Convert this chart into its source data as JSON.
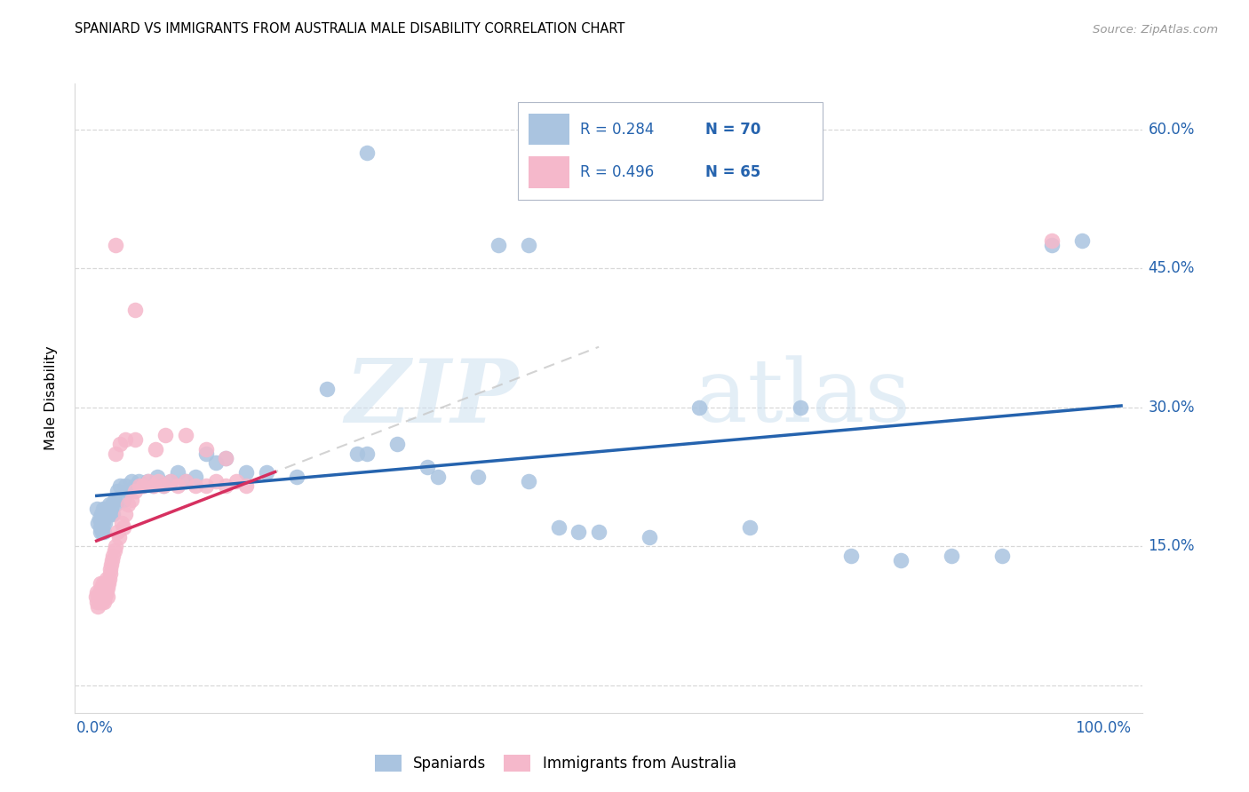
{
  "title": "SPANIARD VS IMMIGRANTS FROM AUSTRALIA MALE DISABILITY CORRELATION CHART",
  "source": "Source: ZipAtlas.com",
  "ylabel": "Male Disability",
  "legend_r1": "R = 0.284",
  "legend_n1": "N = 70",
  "legend_r2": "R = 0.496",
  "legend_n2": "N = 65",
  "spaniard_color": "#aac4e0",
  "immigrant_color": "#f5b8cb",
  "spaniard_line_color": "#2563ae",
  "immigrant_line_color": "#d63060",
  "immigrant_dash_color": "#c8c8c8",
  "legend_text_color": "#2563ae",
  "tick_color": "#2563ae",
  "grid_color": "#d8d8d8",
  "ylim": [
    -0.03,
    0.65
  ],
  "xlim": [
    -0.02,
    1.04
  ],
  "yticks": [
    0.0,
    0.15,
    0.3,
    0.45,
    0.6
  ],
  "ytick_labels": [
    "",
    "15.0%",
    "30.0%",
    "45.0%",
    "60.0%"
  ],
  "spaniard_x": [
    0.002,
    0.003,
    0.004,
    0.005,
    0.005,
    0.006,
    0.006,
    0.007,
    0.007,
    0.008,
    0.008,
    0.009,
    0.009,
    0.01,
    0.01,
    0.011,
    0.012,
    0.013,
    0.014,
    0.015,
    0.016,
    0.017,
    0.018,
    0.019,
    0.02,
    0.022,
    0.025,
    0.028,
    0.03,
    0.033,
    0.036,
    0.04,
    0.043,
    0.048,
    0.052,
    0.057,
    0.062,
    0.068,
    0.075,
    0.082,
    0.09,
    0.1,
    0.11,
    0.12,
    0.13,
    0.15,
    0.17,
    0.2,
    0.23,
    0.26,
    0.3,
    0.34,
    0.38,
    0.43,
    0.48,
    0.5,
    0.55,
    0.6,
    0.65,
    0.7,
    0.75,
    0.8,
    0.85,
    0.9,
    0.95,
    0.98,
    0.27,
    0.33,
    0.4,
    0.46
  ],
  "spaniard_y": [
    0.19,
    0.175,
    0.18,
    0.17,
    0.165,
    0.185,
    0.175,
    0.18,
    0.165,
    0.19,
    0.175,
    0.18,
    0.165,
    0.19,
    0.175,
    0.185,
    0.19,
    0.185,
    0.195,
    0.185,
    0.19,
    0.195,
    0.185,
    0.2,
    0.195,
    0.21,
    0.215,
    0.2,
    0.215,
    0.21,
    0.22,
    0.215,
    0.22,
    0.215,
    0.22,
    0.215,
    0.225,
    0.215,
    0.22,
    0.23,
    0.22,
    0.225,
    0.25,
    0.24,
    0.245,
    0.23,
    0.23,
    0.225,
    0.32,
    0.25,
    0.26,
    0.225,
    0.225,
    0.22,
    0.165,
    0.165,
    0.16,
    0.3,
    0.17,
    0.3,
    0.14,
    0.135,
    0.14,
    0.14,
    0.475,
    0.48,
    0.25,
    0.235,
    0.475,
    0.17
  ],
  "spaniard_outlier_x": [
    0.27
  ],
  "spaniard_outlier_y": [
    0.575
  ],
  "spaniard_outlier2_x": [
    0.43
  ],
  "spaniard_outlier2_y": [
    0.475
  ],
  "immigrant_x": [
    0.001,
    0.002,
    0.002,
    0.003,
    0.003,
    0.004,
    0.004,
    0.005,
    0.005,
    0.006,
    0.006,
    0.007,
    0.007,
    0.008,
    0.008,
    0.009,
    0.009,
    0.01,
    0.01,
    0.011,
    0.011,
    0.012,
    0.012,
    0.013,
    0.014,
    0.015,
    0.015,
    0.016,
    0.017,
    0.018,
    0.019,
    0.02,
    0.022,
    0.024,
    0.026,
    0.028,
    0.03,
    0.033,
    0.036,
    0.04,
    0.044,
    0.048,
    0.053,
    0.058,
    0.063,
    0.068,
    0.075,
    0.082,
    0.09,
    0.1,
    0.11,
    0.12,
    0.13,
    0.14,
    0.15,
    0.02,
    0.025,
    0.03,
    0.04,
    0.07,
    0.09,
    0.11,
    0.13,
    0.06,
    0.95
  ],
  "immigrant_y": [
    0.095,
    0.1,
    0.09,
    0.095,
    0.085,
    0.1,
    0.09,
    0.11,
    0.095,
    0.105,
    0.095,
    0.1,
    0.09,
    0.11,
    0.095,
    0.1,
    0.09,
    0.11,
    0.095,
    0.1,
    0.115,
    0.105,
    0.095,
    0.11,
    0.115,
    0.12,
    0.125,
    0.13,
    0.135,
    0.14,
    0.145,
    0.15,
    0.165,
    0.16,
    0.175,
    0.17,
    0.185,
    0.195,
    0.2,
    0.21,
    0.215,
    0.215,
    0.22,
    0.215,
    0.22,
    0.215,
    0.22,
    0.215,
    0.22,
    0.215,
    0.215,
    0.22,
    0.215,
    0.22,
    0.215,
    0.25,
    0.26,
    0.265,
    0.265,
    0.27,
    0.27,
    0.255,
    0.245,
    0.255,
    0.48
  ],
  "immigrant_outlier_x": [
    0.02
  ],
  "immigrant_outlier_y": [
    0.475
  ],
  "immigrant_outlier2_x": [
    0.04
  ],
  "immigrant_outlier2_y": [
    0.405
  ]
}
